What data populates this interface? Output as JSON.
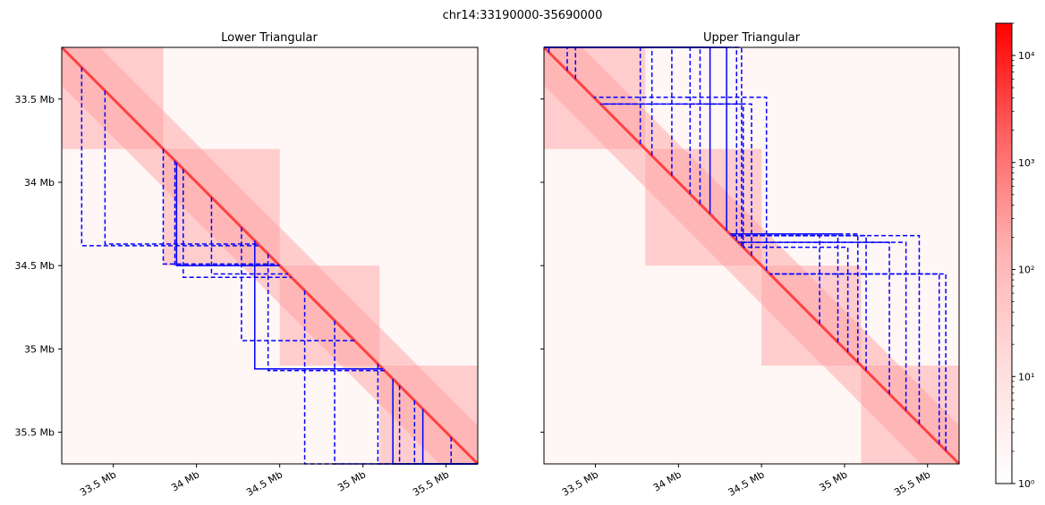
{
  "figure": {
    "suptitle": "chr14:33190000-35690000"
  },
  "chart_data": [
    {
      "type": "heatmap",
      "title": "Lower Triangular",
      "region_start_mb": 33.19,
      "region_end_mb": 35.69,
      "x_ticks": [
        {
          "value": 33.5,
          "label": "33.5 Mb"
        },
        {
          "value": 34.0,
          "label": "34 Mb"
        },
        {
          "value": 34.5,
          "label": "34.5 Mb"
        },
        {
          "value": 35.0,
          "label": "35 Mb"
        },
        {
          "value": 35.5,
          "label": "35.5 Mb"
        }
      ],
      "y_ticks": [
        {
          "value": 33.5,
          "label": "33.5 Mb"
        },
        {
          "value": 34.0,
          "label": "34 Mb"
        },
        {
          "value": 34.5,
          "label": "34.5 Mb"
        },
        {
          "value": 35.0,
          "label": "35 Mb"
        },
        {
          "value": 35.5,
          "label": "35.5 Mb"
        }
      ],
      "y_tick_labels_visible": true,
      "x_tick_rotation_deg": 30,
      "colormap": "white-red",
      "color_scale": "log",
      "value_range": [
        1,
        20000
      ],
      "line_color": "#0000ff",
      "domains": [
        {
          "start": 33.31,
          "end": 34.38,
          "style": "dashed"
        },
        {
          "start": 33.45,
          "end": 34.37,
          "style": "dashed"
        },
        {
          "start": 33.8,
          "end": 34.49,
          "style": "dashed"
        },
        {
          "start": 33.87,
          "end": 34.5,
          "style": "dashed"
        },
        {
          "start": 33.88,
          "end": 34.5,
          "style": "solid"
        },
        {
          "start": 33.92,
          "end": 34.57,
          "style": "dashed"
        },
        {
          "start": 34.09,
          "end": 34.55,
          "style": "dashed"
        },
        {
          "start": 34.27,
          "end": 34.95,
          "style": "dashed"
        },
        {
          "start": 34.35,
          "end": 35.12,
          "style": "solid"
        },
        {
          "start": 34.43,
          "end": 35.13,
          "style": "dashed"
        },
        {
          "start": 34.65,
          "end": 35.69,
          "style": "dashed"
        },
        {
          "start": 34.83,
          "end": 35.69,
          "style": "dashed"
        },
        {
          "start": 35.09,
          "end": 35.69,
          "style": "dashed"
        },
        {
          "start": 35.18,
          "end": 35.69,
          "style": "solid"
        },
        {
          "start": 35.22,
          "end": 35.69,
          "style": "dashed"
        },
        {
          "start": 35.31,
          "end": 35.69,
          "style": "dashed"
        },
        {
          "start": 35.36,
          "end": 35.69,
          "style": "solid"
        },
        {
          "start": 35.53,
          "end": 35.69,
          "style": "dashed"
        }
      ]
    },
    {
      "type": "heatmap",
      "title": "Upper Triangular",
      "region_start_mb": 33.19,
      "region_end_mb": 35.69,
      "x_ticks": [
        {
          "value": 33.5,
          "label": "33.5 Mb"
        },
        {
          "value": 34.0,
          "label": "34 Mb"
        },
        {
          "value": 34.5,
          "label": "34.5 Mb"
        },
        {
          "value": 35.0,
          "label": "35 Mb"
        },
        {
          "value": 35.5,
          "label": "35.5 Mb"
        }
      ],
      "y_ticks": [
        {
          "value": 33.5,
          "label": ""
        },
        {
          "value": 34.0,
          "label": ""
        },
        {
          "value": 34.5,
          "label": ""
        },
        {
          "value": 35.0,
          "label": ""
        },
        {
          "value": 35.5,
          "label": ""
        }
      ],
      "y_tick_labels_visible": false,
      "x_tick_rotation_deg": 30,
      "colormap": "white-red",
      "color_scale": "log",
      "value_range": [
        1,
        20000
      ],
      "line_color": "#0000ff",
      "domains": [
        {
          "start": 33.19,
          "end": 33.22,
          "style": "dashed"
        },
        {
          "start": 33.19,
          "end": 33.33,
          "style": "dashed"
        },
        {
          "start": 33.19,
          "end": 33.38,
          "style": "dashed"
        },
        {
          "start": 33.19,
          "end": 33.77,
          "style": "dashed"
        },
        {
          "start": 33.19,
          "end": 33.84,
          "style": "dashed"
        },
        {
          "start": 33.19,
          "end": 33.96,
          "style": "dashed"
        },
        {
          "start": 33.19,
          "end": 34.07,
          "style": "dashed"
        },
        {
          "start": 33.19,
          "end": 34.13,
          "style": "dashed"
        },
        {
          "start": 33.19,
          "end": 34.19,
          "style": "solid"
        },
        {
          "start": 33.19,
          "end": 34.29,
          "style": "solid"
        },
        {
          "start": 33.19,
          "end": 34.35,
          "style": "dashed"
        },
        {
          "start": 33.19,
          "end": 34.38,
          "style": "dashed"
        },
        {
          "start": 33.53,
          "end": 34.39,
          "style": "dashed"
        },
        {
          "start": 33.53,
          "end": 34.44,
          "style": "dashed"
        },
        {
          "start": 33.49,
          "end": 34.53,
          "style": "dashed"
        },
        {
          "start": 34.32,
          "end": 34.85,
          "style": "dashed"
        },
        {
          "start": 34.31,
          "end": 34.96,
          "style": "dashed"
        },
        {
          "start": 34.39,
          "end": 35.02,
          "style": "dashed"
        },
        {
          "start": 34.31,
          "end": 35.08,
          "style": "dashed"
        },
        {
          "start": 34.32,
          "end": 35.13,
          "style": "dashed"
        },
        {
          "start": 34.36,
          "end": 35.27,
          "style": "dashed"
        },
        {
          "start": 34.36,
          "end": 35.37,
          "style": "dashed"
        },
        {
          "start": 34.32,
          "end": 35.45,
          "style": "dashed"
        },
        {
          "start": 34.55,
          "end": 35.57,
          "style": "dashed"
        },
        {
          "start": 34.55,
          "end": 35.61,
          "style": "dashed"
        }
      ]
    }
  ],
  "colorbar": {
    "scale": "log",
    "range": [
      1,
      20000
    ],
    "ticks": [
      {
        "value": 1,
        "label": "10⁰"
      },
      {
        "value": 10,
        "label": "10¹"
      },
      {
        "value": 100,
        "label": "10²"
      },
      {
        "value": 1000,
        "label": "10³"
      },
      {
        "value": 10000,
        "label": "10⁴"
      }
    ]
  }
}
